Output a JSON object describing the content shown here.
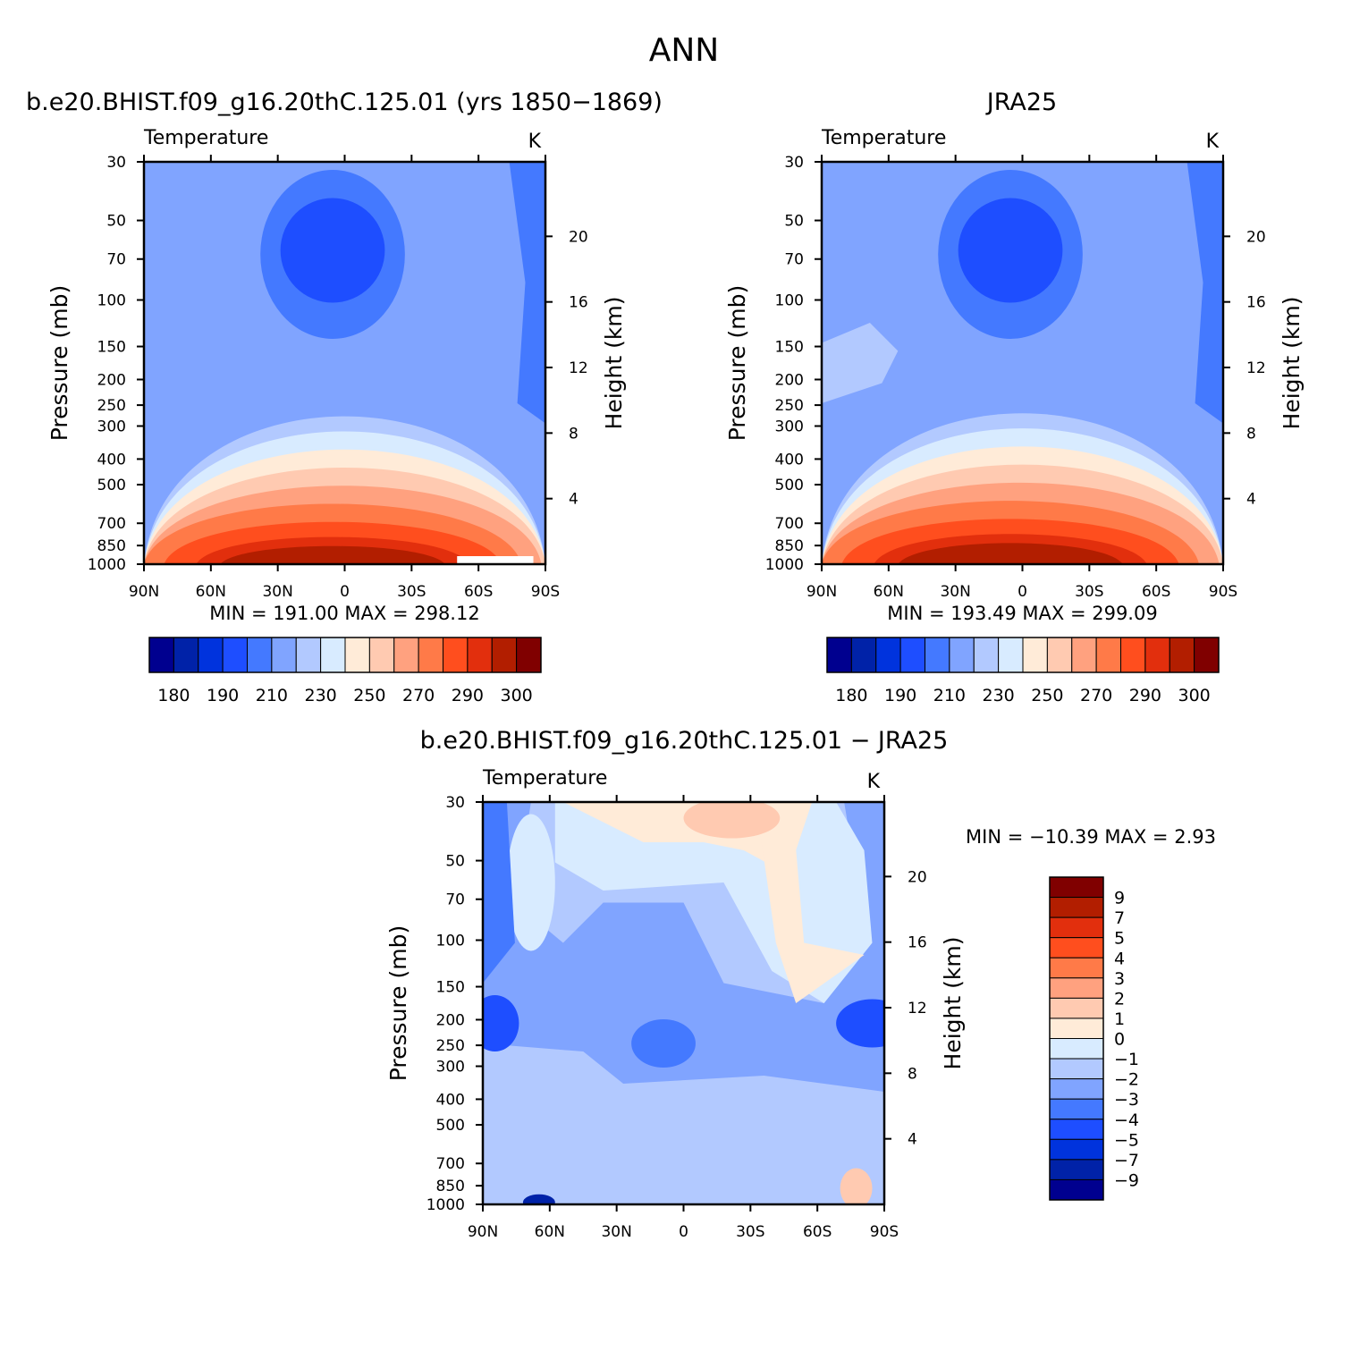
{
  "figure": {
    "title": "ANN"
  },
  "chart_data": [
    {
      "id": "model",
      "type": "contour",
      "title": "b.e20.BHIST.f09_g16.20thC.125.01 (yrs 1850−1869)",
      "variable_label": "Temperature",
      "units": "K",
      "xlabel": "",
      "ylabel": "Pressure (mb)",
      "ylabel_right": "Height (km)",
      "x_ticks": [
        "90N",
        "60N",
        "30N",
        "0",
        "30S",
        "60S",
        "90S"
      ],
      "x_values": [
        90,
        60,
        30,
        0,
        -30,
        -60,
        -90
      ],
      "y_ticks": [
        30,
        50,
        70,
        100,
        150,
        200,
        250,
        300,
        400,
        500,
        700,
        850,
        1000
      ],
      "y_right_ticks": [
        4,
        8,
        12,
        16,
        20
      ],
      "ylim": [
        1000,
        30
      ],
      "log_scale_y": true,
      "min": "191.00",
      "max": "298.12",
      "stats_text": "MIN = 191.00 MAX = 298.12",
      "colorbar": {
        "orientation": "horizontal",
        "labels": [
          "180",
          "190",
          "210",
          "230",
          "250",
          "270",
          "290",
          "300"
        ]
      }
    },
    {
      "id": "obs",
      "type": "contour",
      "title": "JRA25",
      "variable_label": "Temperature",
      "units": "K",
      "xlabel": "",
      "ylabel": "Pressure (mb)",
      "ylabel_right": "Height (km)",
      "x_ticks": [
        "90N",
        "60N",
        "30N",
        "0",
        "30S",
        "60S",
        "90S"
      ],
      "x_values": [
        90,
        60,
        30,
        0,
        -30,
        -60,
        -90
      ],
      "y_ticks": [
        30,
        50,
        70,
        100,
        150,
        200,
        250,
        300,
        400,
        500,
        700,
        850,
        1000
      ],
      "y_right_ticks": [
        4,
        8,
        12,
        16,
        20
      ],
      "ylim": [
        1000,
        30
      ],
      "log_scale_y": true,
      "min": "193.49",
      "max": "299.09",
      "stats_text": "MIN = 193.49 MAX = 299.09",
      "colorbar": {
        "orientation": "horizontal",
        "labels": [
          "180",
          "190",
          "210",
          "230",
          "250",
          "270",
          "290",
          "300"
        ]
      }
    },
    {
      "id": "diff",
      "type": "contour",
      "title": "b.e20.BHIST.f09_g16.20thC.125.01 − JRA25",
      "variable_label": "Temperature",
      "units": "K",
      "xlabel": "",
      "ylabel": "Pressure (mb)",
      "ylabel_right": "Height (km)",
      "x_ticks": [
        "90N",
        "60N",
        "30N",
        "0",
        "30S",
        "60S",
        "90S"
      ],
      "x_values": [
        90,
        60,
        30,
        0,
        -30,
        -60,
        -90
      ],
      "y_ticks": [
        30,
        50,
        70,
        100,
        150,
        200,
        250,
        300,
        400,
        500,
        700,
        850,
        1000
      ],
      "y_right_ticks": [
        4,
        8,
        12,
        16,
        20
      ],
      "ylim": [
        1000,
        30
      ],
      "log_scale_y": true,
      "min": "−10.39",
      "max": "2.93",
      "stats_text": "MIN = −10.39  MAX =    2.93",
      "colorbar": {
        "orientation": "vertical",
        "labels": [
          "9",
          "7",
          "5",
          "4",
          "3",
          "2",
          "1",
          "0",
          "−1",
          "−2",
          "−3",
          "−4",
          "−5",
          "−7",
          "−9"
        ]
      }
    }
  ],
  "colors": {
    "temperature_scale": [
      "#00008f",
      "#0022a8",
      "#0033dd",
      "#1e4eff",
      "#4479ff",
      "#80a4ff",
      "#b2c9ff",
      "#d8ebff",
      "#ffebd8",
      "#ffcab1",
      "#ffa17f",
      "#ff7a48",
      "#ff4e1e",
      "#e22f0d",
      "#b21e00",
      "#800000"
    ],
    "difference_scale": [
      "#800000",
      "#b21e00",
      "#e22f0d",
      "#ff4e1e",
      "#ff7a48",
      "#ffa17f",
      "#ffcab1",
      "#ffebd8",
      "#d8ebff",
      "#b2c9ff",
      "#80a4ff",
      "#4479ff",
      "#1e4eff",
      "#0033dd",
      "#0022a8",
      "#00008f"
    ]
  }
}
